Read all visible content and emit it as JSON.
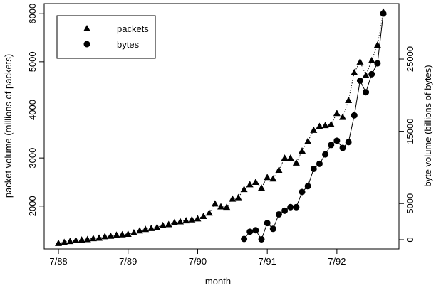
{
  "chart_data": {
    "type": "line",
    "x_label": "month",
    "y_label": "packet volume (millions of packets)",
    "y2_label": "byte volume (billions of bytes)",
    "x": [
      0,
      1,
      2,
      3,
      4,
      5,
      6,
      7,
      8,
      9,
      10,
      11,
      12,
      13,
      14,
      15,
      16,
      17,
      18,
      19,
      20,
      21,
      22,
      23,
      24,
      25,
      26,
      27,
      28,
      29,
      30,
      31,
      32,
      33,
      34,
      35,
      36,
      37,
      38,
      39,
      40,
      41,
      42,
      43,
      44,
      45,
      46,
      47,
      48,
      49,
      50,
      51,
      52,
      53,
      54,
      55,
      56
    ],
    "xlim": [
      -2.46,
      58.7
    ],
    "xticks": [
      {
        "value": 0,
        "label": "7/88"
      },
      {
        "value": 12,
        "label": "7/89"
      },
      {
        "value": 24,
        "label": "7/90"
      },
      {
        "value": 36,
        "label": "7/91"
      },
      {
        "value": 48,
        "label": "7/92"
      }
    ],
    "ylim": [
      1110,
      6210
    ],
    "yticks": [
      2000,
      3000,
      4000,
      5000,
      6000
    ],
    "y2lim": [
      -1280,
      32680
    ],
    "y2ticks": [
      0,
      5000,
      15000,
      25000
    ],
    "legend": "top-left",
    "series": [
      {
        "name": "packets",
        "color": "#000000",
        "marker": "triangle",
        "linestyle": "dotted",
        "values": [
          1230,
          1250,
          1270,
          1290,
          1300,
          1310,
          1330,
          1340,
          1370,
          1380,
          1400,
          1410,
          1420,
          1450,
          1490,
          1520,
          1540,
          1560,
          1600,
          1620,
          1660,
          1680,
          1700,
          1720,
          1740,
          1790,
          1860,
          2050,
          1990,
          1980,
          2150,
          2180,
          2350,
          2450,
          2500,
          2380,
          2600,
          2570,
          2750,
          3000,
          3000,
          2900,
          3150,
          3350,
          3580,
          3660,
          3680,
          3700,
          3930,
          3850,
          4200,
          4780,
          5000,
          4720,
          5030,
          5350,
          6040
        ]
      },
      {
        "name": "bytes",
        "color": "#000000",
        "marker": "circle",
        "linestyle": "solid",
        "axis": "y2",
        "values": [
          null,
          null,
          null,
          null,
          null,
          null,
          null,
          null,
          null,
          null,
          null,
          null,
          null,
          null,
          null,
          null,
          null,
          null,
          null,
          null,
          null,
          null,
          null,
          null,
          null,
          null,
          null,
          null,
          null,
          null,
          null,
          null,
          100,
          1100,
          1300,
          50,
          2300,
          1500,
          3500,
          4000,
          4500,
          4500,
          6600,
          7400,
          9800,
          10500,
          11800,
          13100,
          13700,
          12700,
          13500,
          17200,
          22000,
          20400,
          22900,
          24400,
          31300
        ]
      }
    ]
  }
}
